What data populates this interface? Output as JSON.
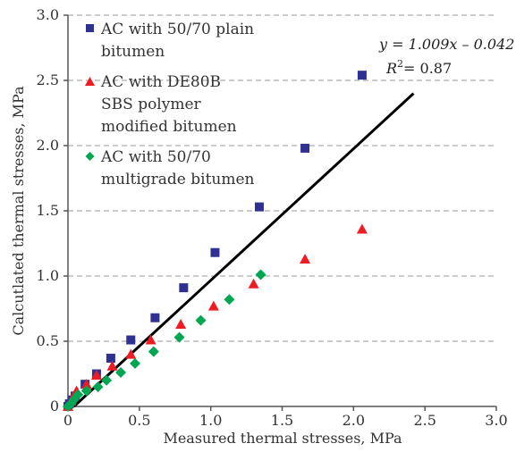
{
  "chart_data": {
    "type": "scatter",
    "title": "",
    "xlabel": "Measured thermal stresses, MPa",
    "ylabel": "Calcutlated thermal stresses, MPa",
    "xlim": [
      0,
      3.0
    ],
    "ylim": [
      0,
      3.0
    ],
    "x_ticks": [
      "0",
      "0.5",
      "1.0",
      "1.5",
      "2.0",
      "2.5",
      "3.0"
    ],
    "y_ticks": [
      "0",
      "0.5",
      "1.0",
      "1.5",
      "2.0",
      "2.5",
      "3.0"
    ],
    "grid": "horizontal-dashed",
    "legend_position": "top-left",
    "series": [
      {
        "name": "AC with 50/70 plain bitumen",
        "legend_lines": [
          "AC with 50/70 plain",
          "bitumen"
        ],
        "marker": "square",
        "color": "#2e3192",
        "points": [
          [
            0.0,
            0.0
          ],
          [
            0.01,
            0.02
          ],
          [
            0.03,
            0.05
          ],
          [
            0.05,
            0.08
          ],
          [
            0.12,
            0.17
          ],
          [
            0.2,
            0.25
          ],
          [
            0.3,
            0.37
          ],
          [
            0.44,
            0.51
          ],
          [
            0.61,
            0.68
          ],
          [
            0.81,
            0.91
          ],
          [
            1.03,
            1.18
          ],
          [
            1.34,
            1.53
          ],
          [
            1.66,
            1.98
          ],
          [
            2.06,
            2.54
          ]
        ]
      },
      {
        "name": "AC with DE80B SBS polymer modified bitumen",
        "legend_lines": [
          "AC with DE80B",
          "SBS polymer",
          "modified bitumen"
        ],
        "marker": "triangle",
        "color": "#ed1c24",
        "points": [
          [
            0.0,
            0.0
          ],
          [
            0.02,
            0.04
          ],
          [
            0.04,
            0.08
          ],
          [
            0.06,
            0.12
          ],
          [
            0.13,
            0.17
          ],
          [
            0.2,
            0.24
          ],
          [
            0.31,
            0.31
          ],
          [
            0.44,
            0.4
          ],
          [
            0.58,
            0.51
          ],
          [
            0.79,
            0.63
          ],
          [
            1.02,
            0.77
          ],
          [
            1.3,
            0.94
          ],
          [
            1.66,
            1.13
          ],
          [
            2.06,
            1.36
          ]
        ]
      },
      {
        "name": "AC with 50/70 multigrade bitumen",
        "legend_lines": [
          "AC with 50/70",
          "multigrade bitumen"
        ],
        "marker": "diamond",
        "color": "#00a651",
        "points": [
          [
            0.0,
            0.0
          ],
          [
            0.02,
            0.02
          ],
          [
            0.04,
            0.05
          ],
          [
            0.07,
            0.09
          ],
          [
            0.13,
            0.12
          ],
          [
            0.21,
            0.15
          ],
          [
            0.27,
            0.2
          ],
          [
            0.37,
            0.26
          ],
          [
            0.47,
            0.33
          ],
          [
            0.6,
            0.42
          ],
          [
            0.78,
            0.53
          ],
          [
            0.93,
            0.66
          ],
          [
            1.13,
            0.82
          ],
          [
            1.35,
            1.01
          ]
        ]
      }
    ],
    "trendline": {
      "x_range": [
        0.0,
        2.42
      ],
      "slope": 1.009,
      "intercept": -0.042,
      "color": "#000000",
      "equation_text": "y = 1.009x – 0.042",
      "r2_text": "R2 = 0.87",
      "r2_prefix": "R",
      "r2_sup": "2",
      "r2_suffix": "= 0.87"
    }
  }
}
